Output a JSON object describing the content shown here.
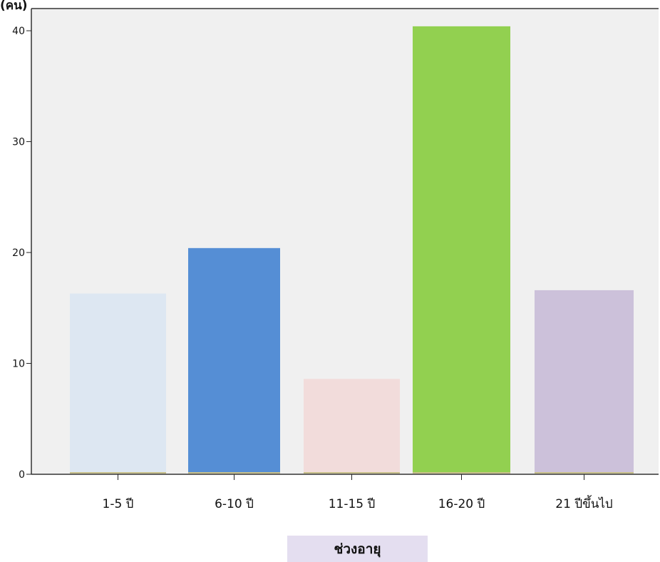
{
  "chart_data": {
    "type": "bar",
    "title": "",
    "ylabel": "(คน)",
    "xlabel": "ช่วงอายุ",
    "categories": [
      "1-5 ปี",
      "6-10 ปี",
      "11-15 ปี",
      "16-20 ปี",
      "21 ปีขึ้นไป"
    ],
    "values": [
      16.3,
      20.4,
      8.6,
      40.4,
      16.6
    ],
    "colors": [
      "#dde7f2",
      "#558ed5",
      "#f2dcdb",
      "#92d050",
      "#ccc1da"
    ],
    "ylim": [
      0,
      42
    ],
    "yticks": [
      0,
      10,
      20,
      30,
      40
    ],
    "grid": false,
    "plot_background": "#f0f0f0"
  }
}
